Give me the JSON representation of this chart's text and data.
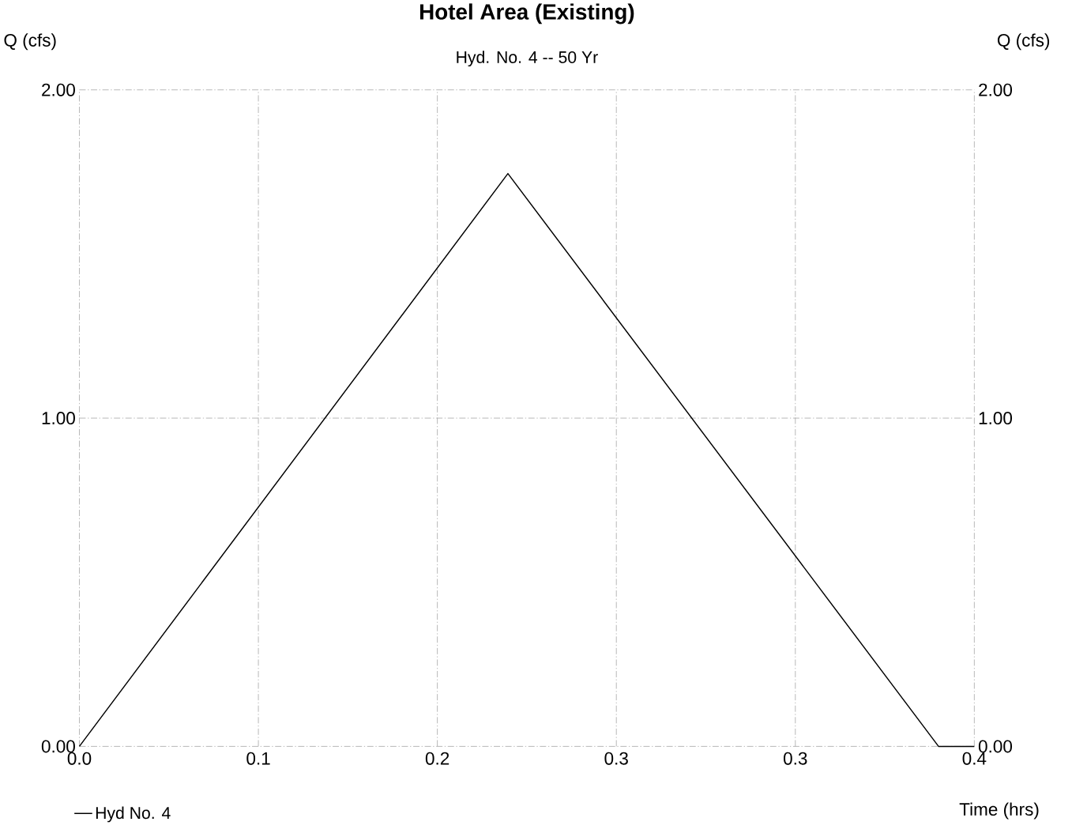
{
  "chart_data": {
    "type": "line",
    "title": "Hotel Area (Existing)",
    "subtitle": "Hyd. No. 4 -- 50 Yr",
    "xlabel": "Time (hrs)",
    "ylabel": "Q (cfs)",
    "y2label": "Q (cfs)",
    "x": [
      0,
      0.2035,
      0.408,
      0.425
    ],
    "series": [
      {
        "name": "Hyd No. 4",
        "color": "#000000",
        "values": [
          0,
          1.745,
          0,
          0
        ]
      }
    ],
    "xlim": [
      0,
      0.425
    ],
    "xticks": [
      {
        "value": 0,
        "label": "0.0"
      },
      {
        "value": 0.085,
        "label": "0.1"
      },
      {
        "value": 0.17,
        "label": "0.2"
      },
      {
        "value": 0.255,
        "label": "0.3"
      },
      {
        "value": 0.34,
        "label": "0.3"
      },
      {
        "value": 0.425,
        "label": "0.4"
      }
    ],
    "ylim": [
      0,
      2
    ],
    "yticks": [
      {
        "value": 0,
        "label": "0.00"
      },
      {
        "value": 1,
        "label": "1.00"
      },
      {
        "value": 2,
        "label": "2.00"
      }
    ],
    "y2lim": [
      0,
      2
    ],
    "y2ticks": [
      {
        "value": 0,
        "label": "0.00"
      },
      {
        "value": 1,
        "label": "1.00"
      },
      {
        "value": 2,
        "label": "2.00"
      }
    ],
    "grid": true,
    "legend": "bottom left",
    "marker": "none",
    "line_style": "solid"
  }
}
